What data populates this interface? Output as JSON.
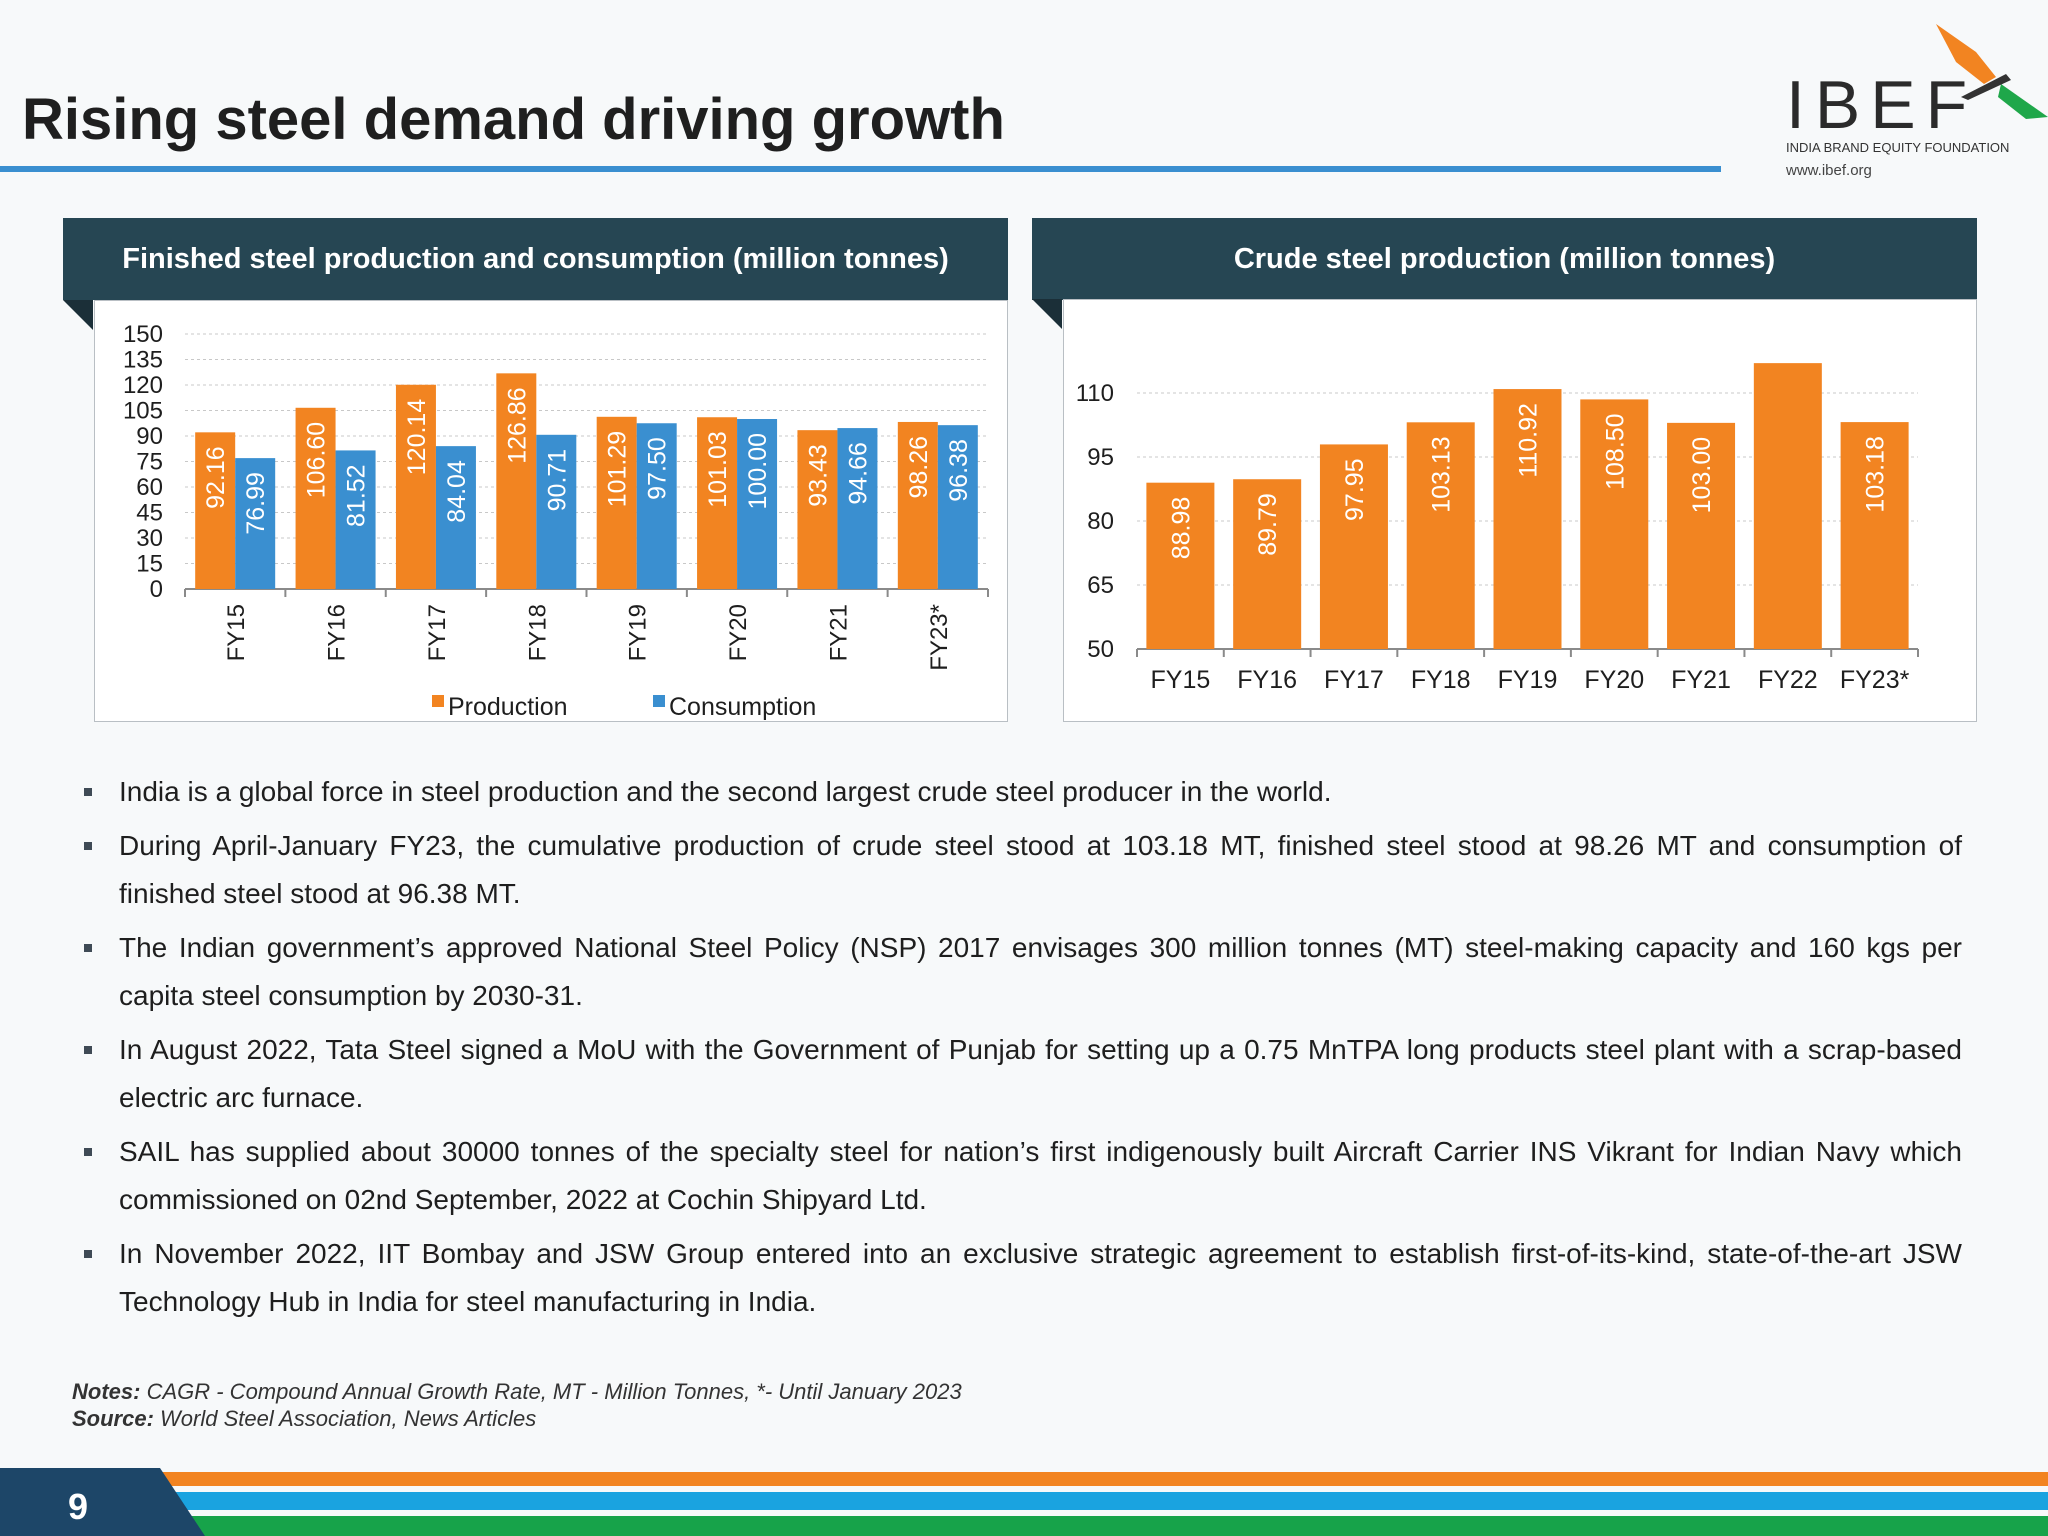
{
  "title": "Rising steel demand driving growth",
  "logo": {
    "name": "IBEF",
    "subtitle": "INDIA BRAND EQUITY FOUNDATION",
    "url": "www.ibef.org"
  },
  "colors": {
    "production": "#f28421",
    "consumption": "#3a8fd0",
    "header": "#264653",
    "rule": "#3a8fd0"
  },
  "chart_data": [
    {
      "type": "bar",
      "title": "Finished steel production and consumption (million tonnes)",
      "categories": [
        "FY15",
        "FY16",
        "FY17",
        "FY18",
        "FY19",
        "FY20",
        "FY21",
        "FY23*"
      ],
      "series": [
        {
          "name": "Production",
          "values": [
            92.16,
            106.6,
            120.14,
            126.86,
            101.29,
            101.03,
            93.43,
            98.26
          ],
          "labels": [
            "92.16",
            "106.60",
            "120.14",
            "126.86",
            "101.29",
            "101.03",
            "93.43",
            "98.26"
          ]
        },
        {
          "name": "Consumption",
          "values": [
            76.99,
            81.52,
            84.04,
            90.71,
            97.5,
            100.0,
            94.66,
            96.38
          ],
          "labels": [
            "76.99",
            "81.52",
            "84.04",
            "90.71",
            "97.50",
            "100.00",
            "94.66",
            "96.38"
          ]
        }
      ],
      "ylim": [
        0,
        150
      ],
      "yticks": [
        "0",
        "15",
        "30",
        "45",
        "60",
        "75",
        "90",
        "105",
        "120",
        "135",
        "150"
      ],
      "grid": true,
      "legend": "bottom"
    },
    {
      "type": "bar",
      "title": "Crude steel production (million tonnes)",
      "categories": [
        "FY15",
        "FY16",
        "FY17",
        "FY18",
        "FY19",
        "FY20",
        "FY21",
        "FY22",
        "FY23*"
      ],
      "values": [
        88.98,
        89.79,
        97.95,
        103.13,
        110.92,
        108.5,
        103.0,
        117,
        103.18
      ],
      "labels": [
        "88.98",
        "89.79",
        "97.95",
        "103.13",
        "110.92",
        "108.50",
        "103.00",
        "",
        "103.18"
      ],
      "ylim": [
        50,
        125
      ],
      "yticks": [
        "50",
        "65",
        "80",
        "95",
        "110"
      ],
      "grid": true
    }
  ],
  "bullets": [
    "India is a global force in steel production and the second largest crude steel producer in the world.",
    "During April-January FY23, the cumulative production of crude steel stood at 103.18 MT, finished steel stood at 98.26 MT and consumption of finished steel stood at 96.38 MT.",
    "The Indian government’s approved National Steel Policy (NSP) 2017 envisages 300 million tonnes (MT) steel-making capacity and 160 kgs per capita steel consumption by 2030-31.",
    "In August 2022, Tata Steel signed a MoU with the Government of Punjab for setting up a 0.75 MnTPA long products steel plant with a scrap-based electric arc furnace.",
    "SAIL has supplied about 30000 tonnes of the specialty steel for nation’s first indigenously built Aircraft Carrier INS Vikrant for Indian Navy which commissioned on 02nd September, 2022 at Cochin Shipyard Ltd.",
    "In November 2022, IIT Bombay and JSW Group entered into an exclusive strategic agreement to establish first-of-its-kind, state-of-the-art JSW Technology Hub in India for steel manufacturing in India."
  ],
  "notes": {
    "label": "Notes:",
    "text": " CAGR - Compound Annual Growth Rate, MT - Million Tonnes, *- Until January 2023"
  },
  "source": {
    "label": "Source:",
    "text": " World Steel Association, News Articles"
  },
  "page_number": "9"
}
